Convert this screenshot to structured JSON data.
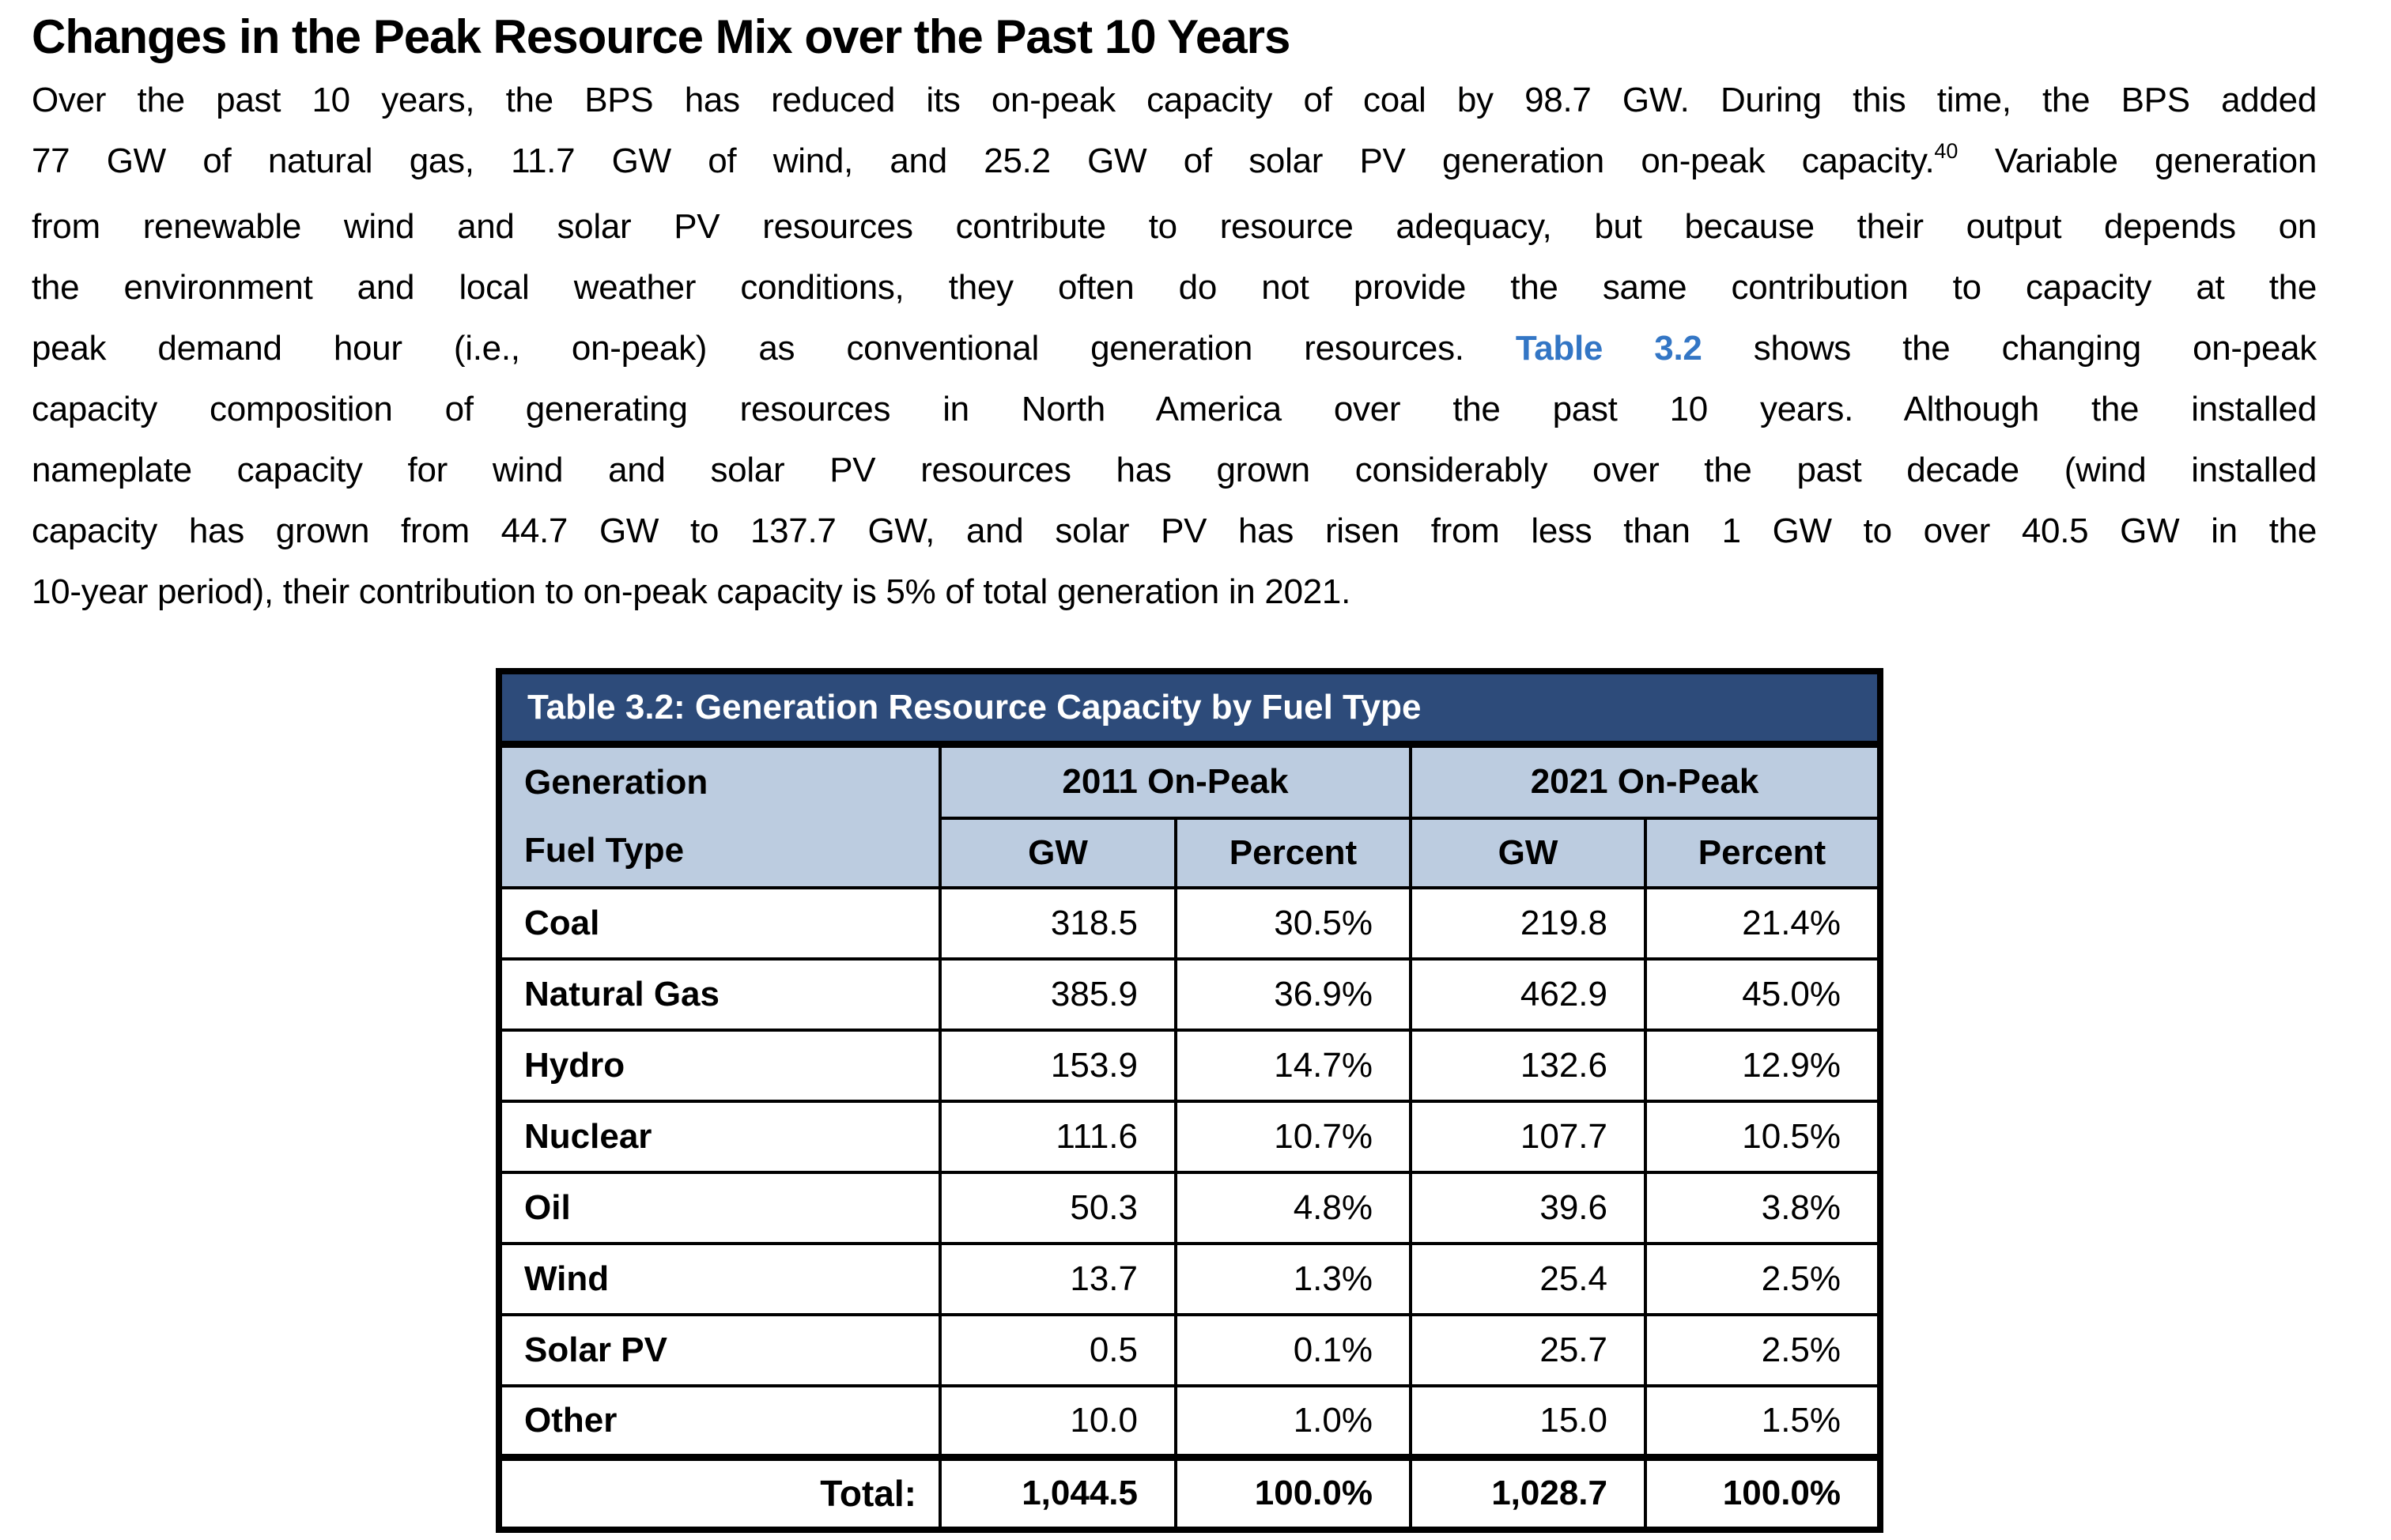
{
  "page": {
    "heading": "Changes in the Peak Resource Mix over the Past 10 Years"
  },
  "colors": {
    "table_title_bg": "#2D4B7A",
    "table_header_bg": "#BCCCE0",
    "link_blue": "#3376C5",
    "text": "#000000"
  },
  "paragraph": {
    "lines": [
      {
        "segments": [
          {
            "t": "Over the past 10 years, the BPS has reduced its on-peak capacity of coal by 98.7 GW. During this time, the BPS added"
          }
        ]
      },
      {
        "segments": [
          {
            "t": "77 GW of natural gas, 11.7 GW of wind, and 25.2 GW of solar PV generation on-peak capacity."
          },
          {
            "t": "40",
            "style": "sup"
          },
          {
            "t": " Variable generation"
          }
        ]
      },
      {
        "segments": [
          {
            "t": "from renewable wind and solar PV resources contribute to resource adequacy, but because their output depends on"
          }
        ]
      },
      {
        "segments": [
          {
            "t": "the environment and local weather conditions, they often do not provide the same contribution to capacity at the"
          }
        ]
      },
      {
        "segments": [
          {
            "t": "peak demand hour (i.e., on-peak) as conventional generation resources. "
          },
          {
            "t": "Table 3.2",
            "style": "link"
          },
          {
            "t": " shows the changing on-peak"
          }
        ]
      },
      {
        "segments": [
          {
            "t": "capacity composition of generating resources in North America over the past 10 years. Although the installed"
          }
        ]
      },
      {
        "segments": [
          {
            "t": "nameplate capacity for wind and solar PV resources has grown considerably over the past decade (wind installed"
          }
        ]
      },
      {
        "segments": [
          {
            "t": "capacity has grown from 44.7 GW to 137.7 GW, and solar PV has risen from less than 1 GW to over 40.5 GW in the"
          }
        ]
      },
      {
        "segments": [
          {
            "t": "10-year period), their contribution to on-peak capacity is 5% of total generation in 2021."
          }
        ],
        "last": true
      }
    ]
  },
  "table": {
    "title": "Table 3.2: Generation Resource Capacity by Fuel Type",
    "header": {
      "fuel_label": "Generation\nFuel Type",
      "group_2011": "2011 On-Peak",
      "group_2021": "2021 On-Peak",
      "sub": [
        "GW",
        "Percent",
        "GW",
        "Percent"
      ]
    },
    "rows": [
      {
        "fuel": "Coal",
        "gw_2011": "318.5",
        "pct_2011": "30.5%",
        "gw_2021": "219.8",
        "pct_2021": "21.4%"
      },
      {
        "fuel": "Natural Gas",
        "gw_2011": "385.9",
        "pct_2011": "36.9%",
        "gw_2021": "462.9",
        "pct_2021": "45.0%"
      },
      {
        "fuel": "Hydro",
        "gw_2011": "153.9",
        "pct_2011": "14.7%",
        "gw_2021": "132.6",
        "pct_2021": "12.9%"
      },
      {
        "fuel": "Nuclear",
        "gw_2011": "111.6",
        "pct_2011": "10.7%",
        "gw_2021": "107.7",
        "pct_2021": "10.5%"
      },
      {
        "fuel": "Oil",
        "gw_2011": "50.3",
        "pct_2011": "4.8%",
        "gw_2021": "39.6",
        "pct_2021": "3.8%"
      },
      {
        "fuel": "Wind",
        "gw_2011": "13.7",
        "pct_2011": "1.3%",
        "gw_2021": "25.4",
        "pct_2021": "2.5%"
      },
      {
        "fuel": "Solar PV",
        "gw_2011": "0.5",
        "pct_2011": "0.1%",
        "gw_2021": "25.7",
        "pct_2021": "2.5%"
      },
      {
        "fuel": "Other",
        "gw_2011": "10.0",
        "pct_2011": "1.0%",
        "gw_2021": "15.0",
        "pct_2021": "1.5%"
      }
    ],
    "total": {
      "label": "Total:",
      "gw_2011": "1,044.5",
      "pct_2011": "100.0%",
      "gw_2021": "1,028.7",
      "pct_2021": "100.0%"
    }
  }
}
